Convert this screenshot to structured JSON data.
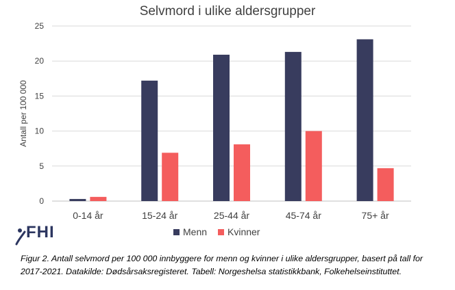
{
  "chart_data": {
    "type": "bar",
    "title": "Selvmord i ulike aldersgrupper",
    "xlabel": "",
    "ylabel": "Antall per 100 000",
    "categories": [
      "0-14 år",
      "15-24 år",
      "25-44 år",
      "45-74 år",
      "75+ år"
    ],
    "series": [
      {
        "name": "Menn",
        "color": "#383c5e",
        "values": [
          0.3,
          17.2,
          20.9,
          21.3,
          23.1
        ]
      },
      {
        "name": "Kvinner",
        "color": "#f45d5d",
        "values": [
          0.6,
          6.9,
          8.1,
          10.0,
          4.7
        ]
      }
    ],
    "ylim": [
      0,
      25
    ],
    "yticks": [
      0,
      5,
      10,
      15,
      20,
      25
    ],
    "grid": true,
    "legend_position": "bottom"
  },
  "logo": {
    "text": "FHI"
  },
  "caption": "Figur 2.  Antall selvmord per 100 000 innbyggere for menn og kvinner i ulike aldersgrupper, basert på tall for 2017-2021. Datakilde: Dødsårsaksregisteret. Tabell: Norgeshelsa statistikkbank, Folkehelseinstituttet."
}
